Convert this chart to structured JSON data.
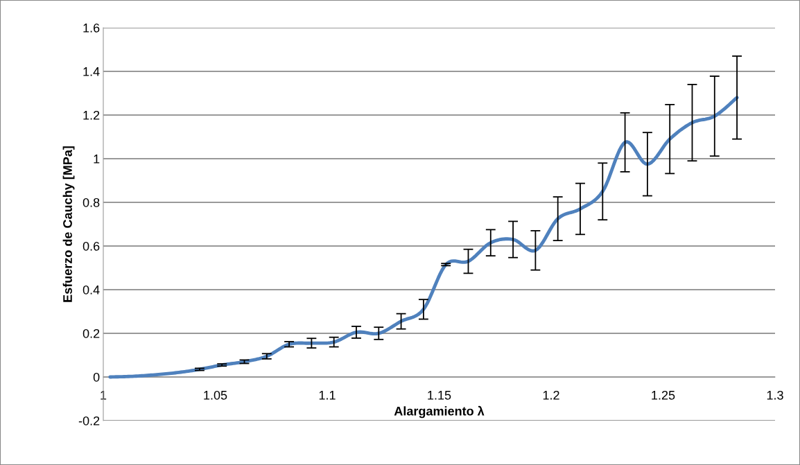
{
  "chart_data": {
    "type": "line",
    "xlabel": "Alargamiento λ",
    "ylabel": "Esfuerzo de Cauchy [MPa]",
    "x": [
      1.003,
      1.013,
      1.023,
      1.033,
      1.043,
      1.053,
      1.063,
      1.073,
      1.083,
      1.093,
      1.103,
      1.113,
      1.123,
      1.133,
      1.143,
      1.153,
      1.163,
      1.173,
      1.183,
      1.193,
      1.203,
      1.213,
      1.223,
      1.233,
      1.243,
      1.253,
      1.263,
      1.273,
      1.283
    ],
    "series": [
      {
        "color": "#4f81bd",
        "values": [
          0,
          0.003,
          0.01,
          0.02,
          0.035,
          0.055,
          0.07,
          0.095,
          0.15,
          0.155,
          0.16,
          0.205,
          0.2,
          0.255,
          0.31,
          0.515,
          0.53,
          0.615,
          0.63,
          0.58,
          0.725,
          0.77,
          0.85,
          1.075,
          0.975,
          1.09,
          1.165,
          1.195,
          1.28
        ],
        "errors": [
          null,
          null,
          null,
          null,
          0.005,
          0.005,
          0.008,
          0.012,
          0.012,
          0.022,
          0.022,
          0.027,
          0.028,
          0.035,
          0.045,
          0.005,
          0.055,
          0.06,
          0.083,
          0.09,
          0.1,
          0.117,
          0.13,
          0.135,
          0.145,
          0.158,
          0.175,
          0.183,
          0.19
        ]
      }
    ],
    "xlim": [
      1,
      1.3
    ],
    "xticks": [
      1,
      1.05,
      1.1,
      1.15,
      1.2,
      1.25,
      1.3
    ],
    "ylim": [
      -0.2,
      1.6
    ],
    "yticks": [
      -0.2,
      0,
      0.2,
      0.4,
      0.6,
      0.8,
      1,
      1.2,
      1.4,
      1.6
    ],
    "grid": "y",
    "marker": "none",
    "line_style": "solid"
  }
}
